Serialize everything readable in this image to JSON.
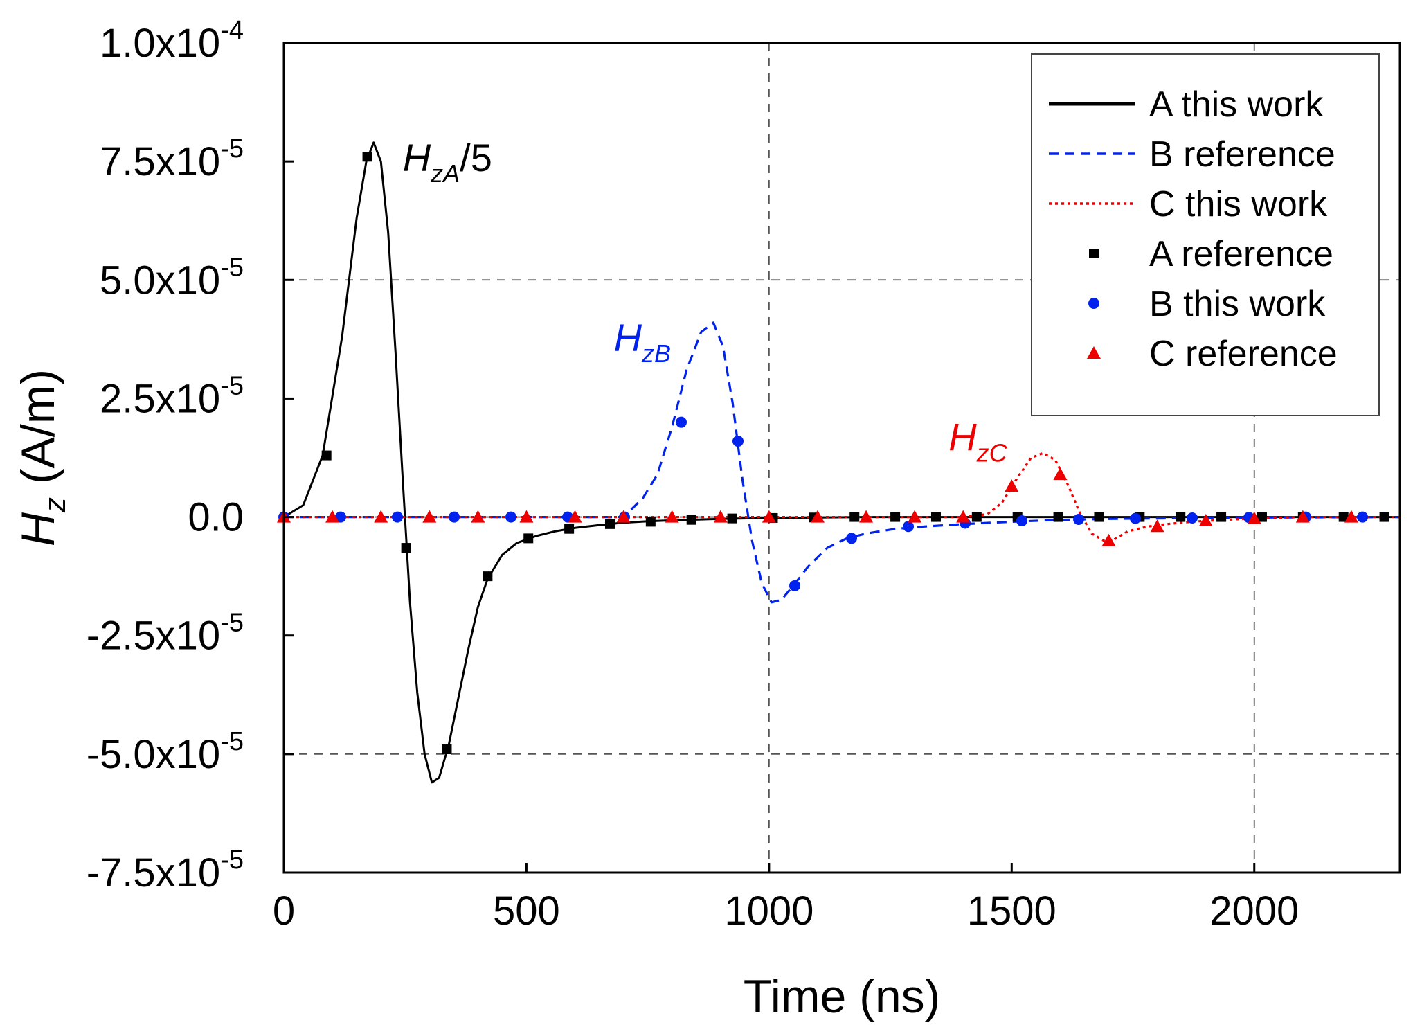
{
  "chart_data": {
    "type": "line",
    "xlabel": "Time (ns)",
    "ylabel_main": "H",
    "ylabel_sub": "z",
    "ylabel_unit": " (A/m)",
    "xlim": [
      0,
      2300
    ],
    "ylim": [
      -7.5e-05,
      0.0001
    ],
    "grid": "dashed at x=1000, 2000 and y=5.0e-5, 0, -5.0e-5",
    "legend_position": "top-right",
    "xticks": [
      {
        "value": 0,
        "label": "0"
      },
      {
        "value": 500,
        "label": "500"
      },
      {
        "value": 1000,
        "label": "1000"
      },
      {
        "value": 1500,
        "label": "1500"
      },
      {
        "value": 2000,
        "label": "2000"
      }
    ],
    "yticks": [
      {
        "value": 0.0001,
        "mant": "1.0x10",
        "exp": "-4"
      },
      {
        "value": 7.5e-05,
        "mant": "7.5x10",
        "exp": "-5"
      },
      {
        "value": 5e-05,
        "mant": "5.0x10",
        "exp": "-5"
      },
      {
        "value": 2.5e-05,
        "mant": "2.5x10",
        "exp": "-5"
      },
      {
        "value": 0,
        "mant": "0.0",
        "exp": ""
      },
      {
        "value": -2.5e-05,
        "mant": "-2.5x10",
        "exp": "-5"
      },
      {
        "value": -5e-05,
        "mant": "-5.0x10",
        "exp": "-5"
      },
      {
        "value": -7.5e-05,
        "mant": "-7.5x10",
        "exp": "-5"
      }
    ],
    "series": [
      {
        "name": "A this work",
        "style": "line-solid",
        "color": "#000000",
        "x": [
          0,
          40,
          80,
          120,
          150,
          170,
          185,
          200,
          215,
          230,
          245,
          260,
          275,
          290,
          305,
          320,
          340,
          360,
          380,
          400,
          420,
          450,
          480,
          520,
          560,
          600,
          650,
          700,
          750,
          800,
          900,
          1000,
          1100,
          1200,
          1400,
          1600,
          1800,
          2000,
          2300
        ],
        "y": [
          0,
          2.5e-06,
          1.3e-05,
          3.8e-05,
          6.3e-05,
          7.5e-05,
          7.9e-05,
          7.5e-05,
          6e-05,
          3.5e-05,
          8e-06,
          -1.8e-05,
          -3.7e-05,
          -5e-05,
          -5.6e-05,
          -5.5e-05,
          -4.8e-05,
          -3.8e-05,
          -2.8e-05,
          -1.9e-05,
          -1.3e-05,
          -8e-06,
          -5.5e-06,
          -4e-06,
          -3e-06,
          -2.3e-06,
          -1.7e-06,
          -1.2e-06,
          -9e-07,
          -7e-07,
          -4e-07,
          -2e-07,
          -1e-07,
          0,
          0,
          0,
          0,
          0,
          0
        ]
      },
      {
        "name": "B reference",
        "style": "line-dashed",
        "color": "#0022ee",
        "x": [
          0,
          600,
          700,
          740,
          770,
          800,
          830,
          860,
          885,
          905,
          925,
          945,
          965,
          985,
          1005,
          1025,
          1050,
          1080,
          1120,
          1160,
          1200,
          1260,
          1320,
          1400,
          1500,
          1600,
          1700,
          1800,
          1900,
          2000,
          2300
        ],
        "y": [
          0,
          0,
          0,
          4e-06,
          9e-06,
          1.9e-05,
          3.1e-05,
          3.9e-05,
          4.1e-05,
          3.6e-05,
          2.4e-05,
          8e-06,
          -5e-06,
          -1.4e-05,
          -1.8e-05,
          -1.75e-05,
          -1.45e-05,
          -1.05e-05,
          -6.5e-06,
          -4.5e-06,
          -3.5e-06,
          -2.5e-06,
          -2e-06,
          -1.5e-06,
          -1e-06,
          -6e-07,
          -4e-07,
          -3e-07,
          -2e-07,
          -1e-07,
          0
        ]
      },
      {
        "name": "C this work",
        "style": "line-dotted",
        "color": "#ee0000",
        "x": [
          0,
          1400,
          1450,
          1480,
          1510,
          1540,
          1565,
          1590,
          1615,
          1640,
          1665,
          1690,
          1710,
          1740,
          1780,
          1820,
          1870,
          1920,
          2000,
          2100,
          2300
        ],
        "y": [
          0,
          0,
          6e-07,
          3e-06,
          8e-06,
          1.25e-05,
          1.35e-05,
          1.2e-05,
          7e-06,
          1e-06,
          -3.5e-06,
          -5e-06,
          -4.8e-06,
          -3e-06,
          -2e-06,
          -1.5e-06,
          -1e-06,
          -7e-07,
          -3e-07,
          0,
          0
        ]
      },
      {
        "name": "A reference",
        "style": "marker-square",
        "color": "#000000",
        "x": [
          88,
          172,
          252,
          336,
          420,
          504,
          588,
          672,
          756,
          840,
          924,
          1008,
          1092,
          1176,
          1260,
          1344,
          1428,
          1512,
          1596,
          1680,
          1764,
          1848,
          1932,
          2016,
          2100,
          2184,
          2268
        ],
        "y": [
          1.3e-05,
          7.6e-05,
          -6.5e-06,
          -4.9e-05,
          -1.25e-05,
          -4.5e-06,
          -2.5e-06,
          -1.5e-06,
          -1e-06,
          -6e-07,
          -3e-07,
          -2e-07,
          -1e-07,
          0,
          0,
          0,
          0,
          0,
          0,
          0,
          0,
          0,
          0,
          0,
          0,
          0,
          0
        ]
      },
      {
        "name": "B this work",
        "style": "marker-circle",
        "color": "#0022ee",
        "x": [
          0,
          117,
          234,
          351,
          468,
          585,
          702,
          819,
          936,
          1053,
          1170,
          1287,
          1404,
          1521,
          1638,
          1755,
          1872,
          1989,
          2106,
          2223
        ],
        "y": [
          0,
          0,
          0,
          0,
          0,
          0,
          0,
          2e-05,
          1.6e-05,
          -1.45e-05,
          -4.5e-06,
          -2e-06,
          -1.3e-06,
          -8e-07,
          -5e-07,
          -3e-07,
          -2e-07,
          -1e-07,
          0,
          0
        ]
      },
      {
        "name": "C reference",
        "style": "marker-triangle",
        "color": "#ee0000",
        "x": [
          0,
          100,
          200,
          300,
          400,
          500,
          600,
          700,
          800,
          900,
          1000,
          1100,
          1200,
          1300,
          1400,
          1500,
          1600,
          1700,
          1800,
          1900,
          2000,
          2100,
          2200
        ],
        "y": [
          0,
          0,
          0,
          0,
          0,
          0,
          0,
          0,
          0,
          0,
          0,
          0,
          0,
          0,
          0,
          6.5e-06,
          9e-06,
          -5e-06,
          -2e-06,
          -8e-07,
          -3e-07,
          0,
          0
        ]
      }
    ],
    "annotations": [
      {
        "text": "H",
        "sub": "zA",
        "suffix": "/5",
        "x": 245,
        "y": 7.3e-05,
        "color": "#000000"
      },
      {
        "text": "H",
        "sub": "zB",
        "suffix": "",
        "x": 680,
        "y": 3.5e-05,
        "color": "#0022ee"
      },
      {
        "text": "H",
        "sub": "zC",
        "suffix": "",
        "x": 1370,
        "y": 1.4e-05,
        "color": "#ee0000"
      }
    ]
  }
}
